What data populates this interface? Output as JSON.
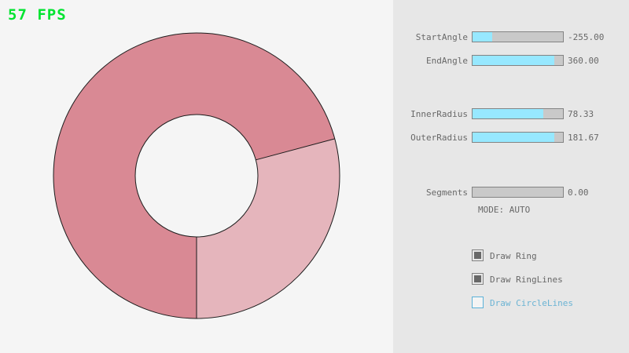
{
  "fps": {
    "text": "57 FPS",
    "color": "#00e430"
  },
  "ring": {
    "start_angle": -255.0,
    "end_angle": 360.0,
    "inner_radius": 78.33,
    "outer_radius": 181.67,
    "overlap_color": "#d98994",
    "single_color": "#e5b5bc",
    "line_color": "#1c1c1c"
  },
  "panel": {
    "background": "#e7e7e7",
    "accent_fill": "#97e8ff",
    "focus_blue": "#5bb2d9",
    "sliders": [
      {
        "label": "StartAngle",
        "value": "-255.00",
        "fill_pct": 21.7
      },
      {
        "label": "EndAngle",
        "value": "360.00",
        "fill_pct": 90.0
      },
      {
        "label": "InnerRadius",
        "value": "78.33",
        "fill_pct": 78.3
      },
      {
        "label": "OuterRadius",
        "value": "181.67",
        "fill_pct": 90.8
      },
      {
        "label": "Segments",
        "value": "0.00",
        "fill_pct": 0
      }
    ],
    "mode_text": "MODE: AUTO",
    "checkboxes": [
      {
        "label": "Draw Ring",
        "checked": true
      },
      {
        "label": "Draw RingLines",
        "checked": true
      },
      {
        "label": "Draw CircleLines",
        "checked": false
      }
    ]
  }
}
